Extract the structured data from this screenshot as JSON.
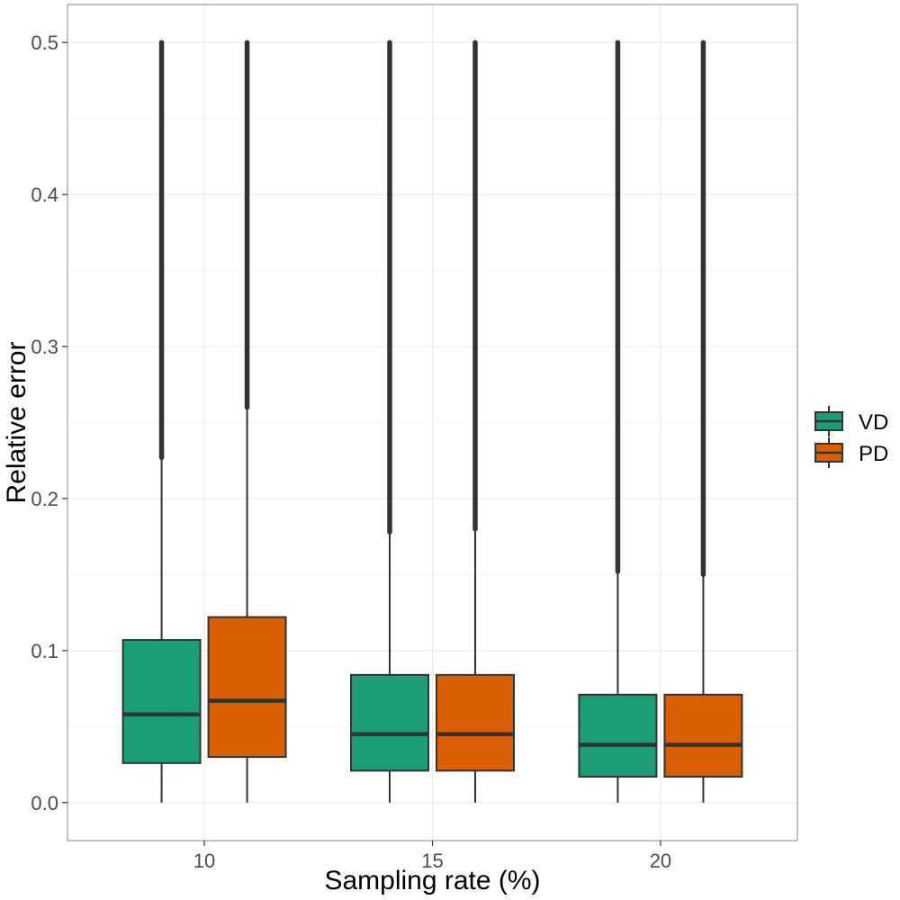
{
  "chart_data": {
    "type": "boxplot",
    "xlabel": "Sampling rate (%)",
    "ylabel": "Relative error",
    "categories": [
      "10",
      "15",
      "20"
    ],
    "ylim": [
      -0.025,
      0.525
    ],
    "yticks": [
      0.0,
      0.1,
      0.2,
      0.3,
      0.4,
      0.5
    ],
    "ytick_labels": [
      "0.0",
      "0.1",
      "0.2",
      "0.3",
      "0.4",
      "0.5"
    ],
    "grid": true,
    "legend_position": "right",
    "series": [
      {
        "name": "VD",
        "color": "#1b9e77",
        "boxes": [
          {
            "category": "10",
            "min": 0.0,
            "q1": 0.026,
            "median": 0.058,
            "q3": 0.107,
            "whisker_high": 0.227,
            "outliers_max": 0.5
          },
          {
            "category": "15",
            "min": 0.0,
            "q1": 0.021,
            "median": 0.045,
            "q3": 0.084,
            "whisker_high": 0.178,
            "outliers_max": 0.5
          },
          {
            "category": "20",
            "min": 0.0,
            "q1": 0.017,
            "median": 0.038,
            "q3": 0.071,
            "whisker_high": 0.152,
            "outliers_max": 0.5
          }
        ]
      },
      {
        "name": "PD",
        "color": "#d95f02",
        "boxes": [
          {
            "category": "10",
            "min": 0.0,
            "q1": 0.03,
            "median": 0.067,
            "q3": 0.122,
            "whisker_high": 0.26,
            "outliers_max": 0.5
          },
          {
            "category": "15",
            "min": 0.0,
            "q1": 0.021,
            "median": 0.045,
            "q3": 0.084,
            "whisker_high": 0.18,
            "outliers_max": 0.5
          },
          {
            "category": "20",
            "min": 0.0,
            "q1": 0.017,
            "median": 0.038,
            "q3": 0.071,
            "whisker_high": 0.15,
            "outliers_max": 0.5
          }
        ]
      }
    ]
  }
}
